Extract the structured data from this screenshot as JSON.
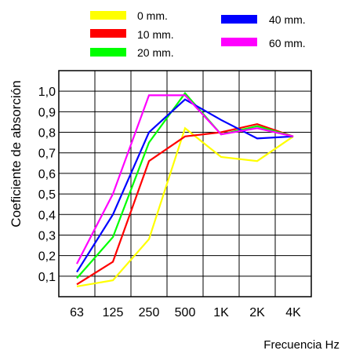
{
  "chart_data": {
    "type": "line",
    "title": "",
    "xlabel": "Frecuencia Hz",
    "ylabel": "Coeficiente de absorción",
    "categories": [
      "63",
      "125",
      "250",
      "500",
      "1K",
      "2K",
      "4K"
    ],
    "yticks": [
      "0,1",
      "0,2",
      "0,3",
      "0,4",
      "0,5",
      "0,6",
      "0,7",
      "0,8",
      "0,9",
      "1,0"
    ],
    "ylim": [
      0.0,
      1.1
    ],
    "grid": true,
    "legend_position": "top",
    "series": [
      {
        "name": "0 mm.",
        "color": "#ffff00",
        "values": [
          0.05,
          0.08,
          0.28,
          0.82,
          0.68,
          0.66,
          0.78
        ]
      },
      {
        "name": "10 mm.",
        "color": "#ff0000",
        "values": [
          0.06,
          0.17,
          0.66,
          0.78,
          0.8,
          0.84,
          0.78
        ]
      },
      {
        "name": "20 mm.",
        "color": "#00ff00",
        "values": [
          0.09,
          0.29,
          0.75,
          0.99,
          0.79,
          0.83,
          0.78
        ]
      },
      {
        "name": "40 mm.",
        "color": "#0000ff",
        "values": [
          0.12,
          0.4,
          0.8,
          0.96,
          0.86,
          0.77,
          0.78
        ]
      },
      {
        "name": "60 mm.",
        "color": "#ff00ff",
        "values": [
          0.16,
          0.5,
          0.98,
          0.98,
          0.79,
          0.82,
          0.78
        ]
      }
    ]
  }
}
